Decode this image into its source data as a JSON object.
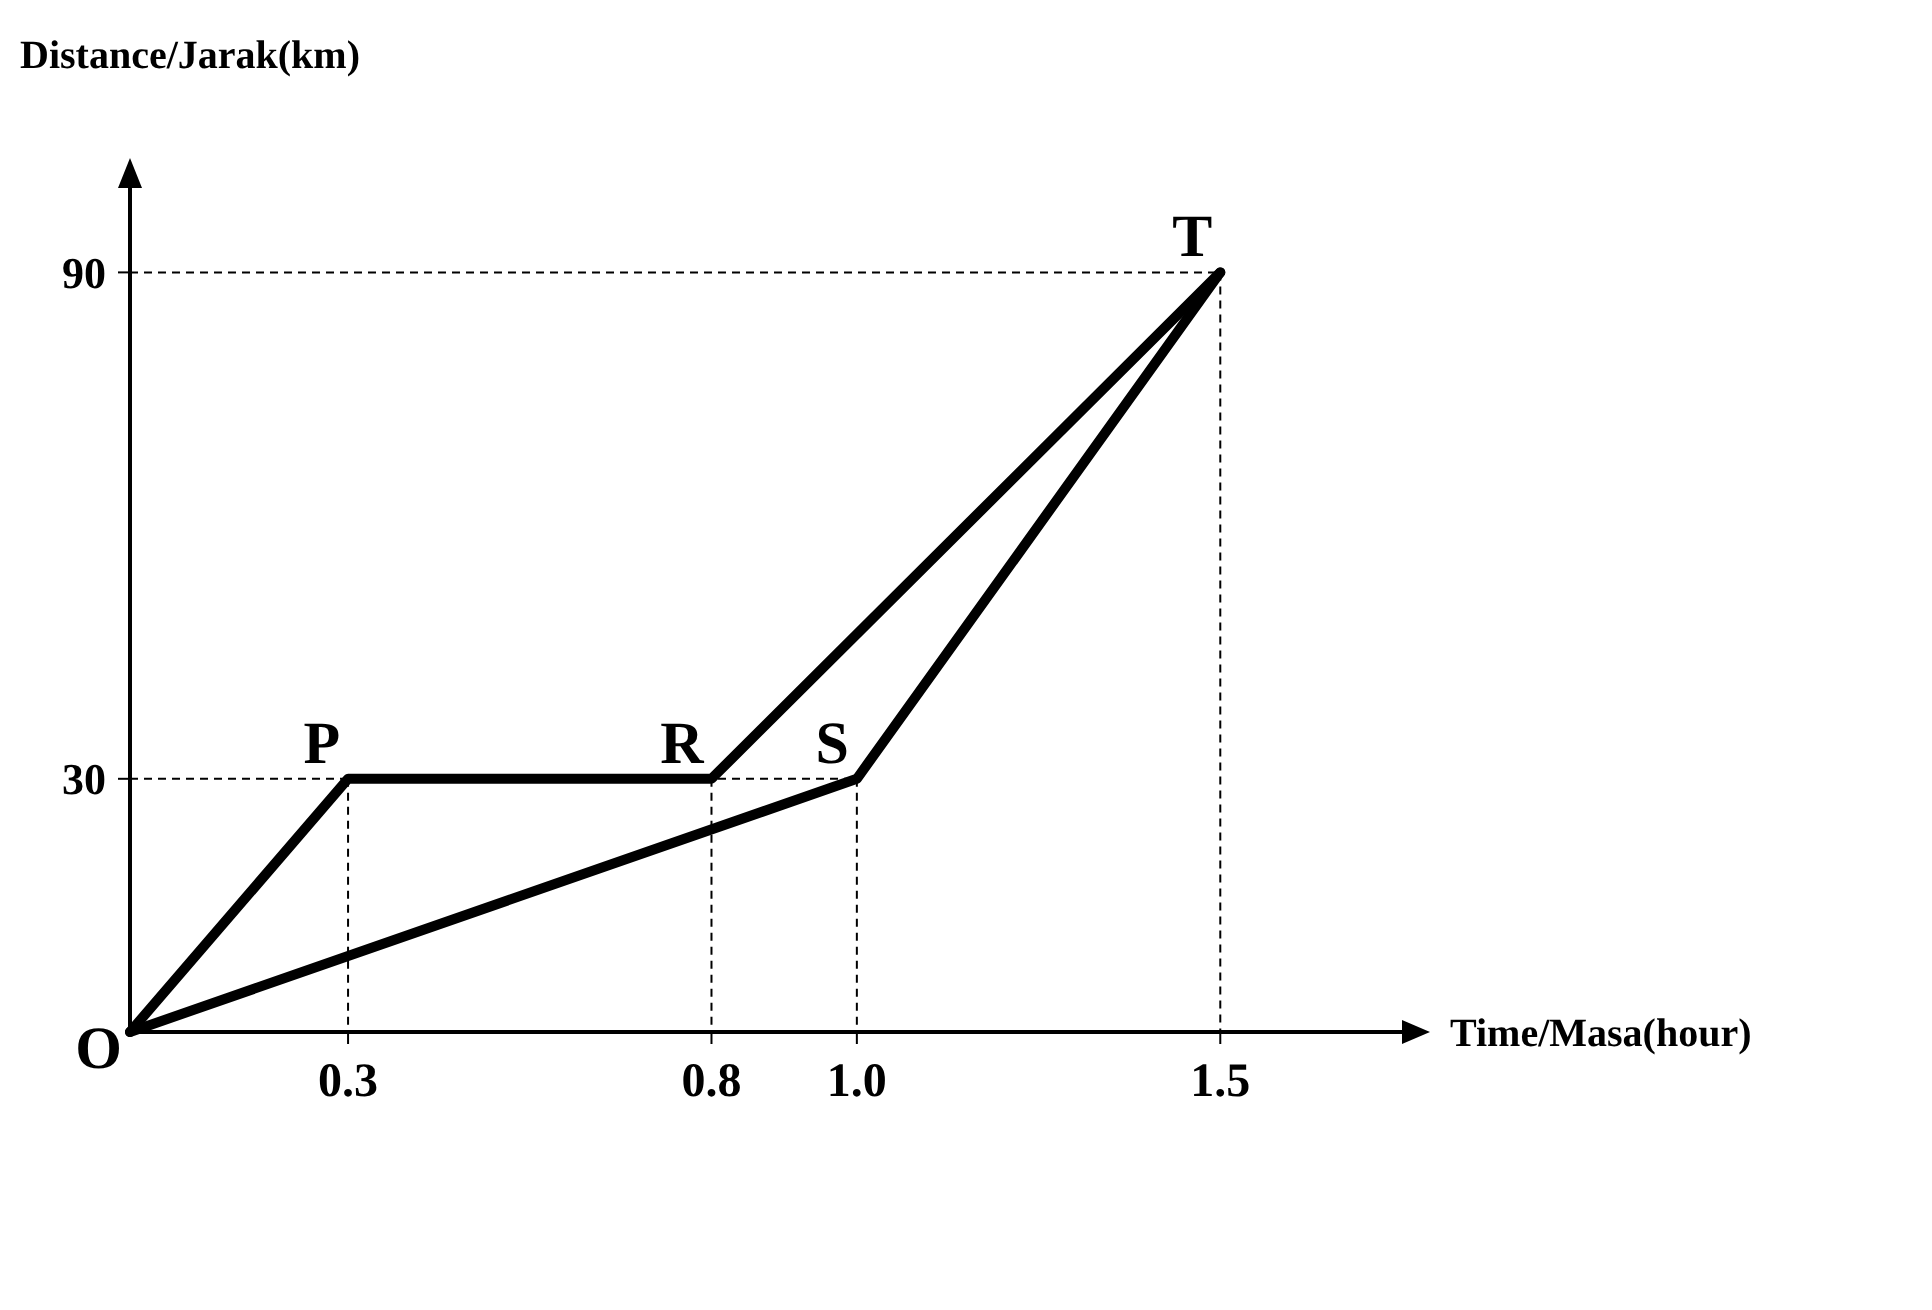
{
  "chart_data": {
    "type": "line",
    "xlabel": "Time/Masa(hour)",
    "ylabel": "Distance/Jarak(km)",
    "xlim": [
      0,
      1.75
    ],
    "ylim": [
      0,
      100
    ],
    "xticks": [
      0.3,
      0.8,
      {
        "value": 1,
        "label": "1.0"
      },
      1.5
    ],
    "yticks": [
      30,
      90
    ],
    "series": [
      {
        "color": "#000000",
        "x": [
          0,
          0.3,
          0.8,
          1.5
        ],
        "values": [
          0,
          30,
          30,
          90
        ]
      },
      {
        "color": "#000000",
        "x": [
          0,
          1,
          1.5
        ],
        "values": [
          0,
          30,
          90
        ]
      }
    ],
    "annotations": [
      {
        "text": "O",
        "x": 0,
        "y": 0
      },
      {
        "text": "P",
        "x": 0.3,
        "y": 30
      },
      {
        "text": "R",
        "x": 0.8,
        "y": 30
      },
      {
        "text": "S",
        "x": 1,
        "y": 30
      },
      {
        "text": "T",
        "x": 1.5,
        "y": 90
      }
    ],
    "grid": true,
    "marker": "none",
    "line_style": "solid"
  }
}
